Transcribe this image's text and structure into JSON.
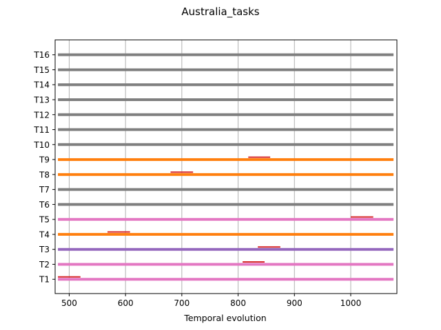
{
  "chart_data": {
    "type": "gantt",
    "title": "Australia_tasks",
    "xlabel": "Temporal evolution",
    "ylabel": "",
    "xlim": [
      475,
      1082
    ],
    "x_ticks": [
      500,
      600,
      700,
      800,
      900,
      1000
    ],
    "grid_x": true,
    "categories": [
      "T1",
      "T2",
      "T3",
      "T4",
      "T5",
      "T6",
      "T7",
      "T8",
      "T9",
      "T10",
      "T11",
      "T12",
      "T13",
      "T14",
      "T15",
      "T16"
    ],
    "timeline": {
      "start": 480,
      "end": 1076
    },
    "rows": [
      {
        "task": "T1",
        "line_color": "#e377c2",
        "marker": {
          "start": 480,
          "end": 520
        }
      },
      {
        "task": "T2",
        "line_color": "#e377c2",
        "marker": {
          "start": 808,
          "end": 847
        }
      },
      {
        "task": "T3",
        "line_color": "#9467bd",
        "marker": {
          "start": 835,
          "end": 875
        }
      },
      {
        "task": "T4",
        "line_color": "#ff7f0e",
        "marker": {
          "start": 568,
          "end": 608
        }
      },
      {
        "task": "T5",
        "line_color": "#e377c2",
        "marker": {
          "start": 1000,
          "end": 1040
        }
      },
      {
        "task": "T6",
        "line_color": "#7f7f7f",
        "marker": null
      },
      {
        "task": "T7",
        "line_color": "#7f7f7f",
        "marker": null
      },
      {
        "task": "T8",
        "line_color": "#ff7f0e",
        "marker": {
          "start": 680,
          "end": 720
        }
      },
      {
        "task": "T9",
        "line_color": "#ff7f0e",
        "marker": {
          "start": 818,
          "end": 857
        }
      },
      {
        "task": "T10",
        "line_color": "#7f7f7f",
        "marker": null
      },
      {
        "task": "T11",
        "line_color": "#7f7f7f",
        "marker": null
      },
      {
        "task": "T12",
        "line_color": "#7f7f7f",
        "marker": null
      },
      {
        "task": "T13",
        "line_color": "#7f7f7f",
        "marker": null
      },
      {
        "task": "T14",
        "line_color": "#7f7f7f",
        "marker": null
      },
      {
        "task": "T15",
        "line_color": "#7f7f7f",
        "marker": null
      },
      {
        "task": "T16",
        "line_color": "#7f7f7f",
        "marker": null
      }
    ],
    "marker_color": "#d62728",
    "grid_color": "#b0b0b0"
  }
}
